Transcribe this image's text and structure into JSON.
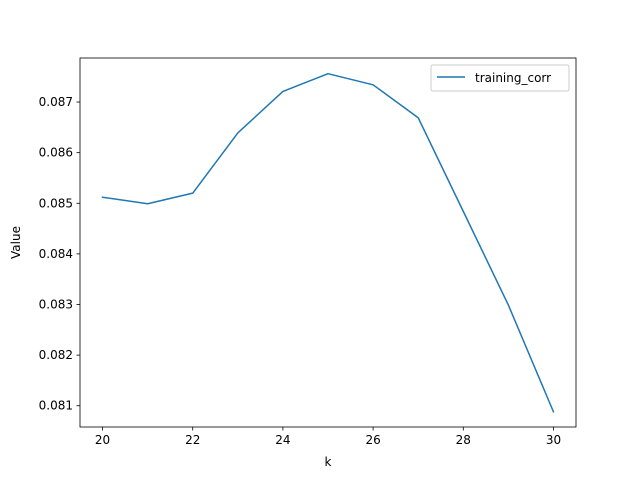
{
  "chart_data": {
    "type": "line",
    "title": "",
    "xlabel": "k",
    "ylabel": "Value",
    "xlim": [
      19.5,
      30.5
    ],
    "ylim": [
      0.08058,
      0.08787
    ],
    "xticks": [
      20,
      22,
      24,
      26,
      28,
      30
    ],
    "xtick_labels": [
      "20",
      "22",
      "24",
      "26",
      "28",
      "30"
    ],
    "yticks": [
      0.081,
      0.082,
      0.083,
      0.084,
      0.085,
      0.086,
      0.087
    ],
    "ytick_labels": [
      "0.081",
      "0.082",
      "0.083",
      "0.084",
      "0.085",
      "0.086",
      "0.087"
    ],
    "grid": false,
    "legend_position": "top-right",
    "series": [
      {
        "name": "training_corr",
        "color": "#1f77b4",
        "x": [
          20,
          21,
          22,
          23,
          24,
          25,
          26,
          27,
          28,
          29,
          30
        ],
        "y": [
          0.08512,
          0.08499,
          0.0852,
          0.08639,
          0.08721,
          0.08756,
          0.08734,
          0.08669,
          0.08484,
          0.08299,
          0.08088
        ]
      }
    ]
  }
}
